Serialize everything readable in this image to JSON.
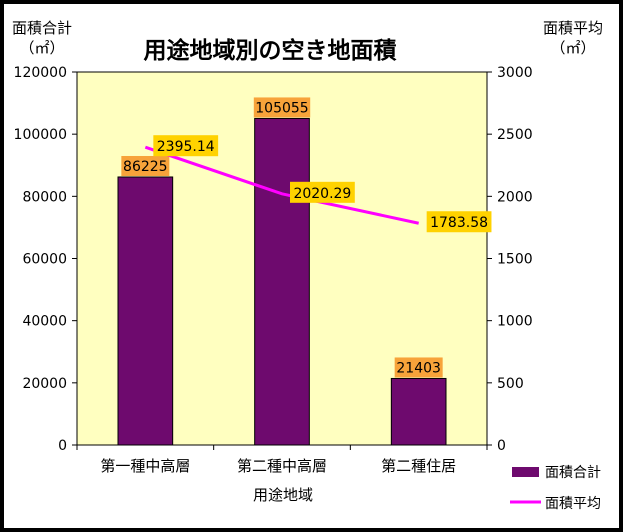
{
  "chart_data": {
    "type": "bar+line",
    "title": "用途地域別の空き地面積",
    "xlabel": "用途地域",
    "ylabel_left": [
      "面積合計",
      "（㎡）"
    ],
    "ylabel_right": [
      "面積平均",
      "（㎡）"
    ],
    "categories": [
      "第一種中高層",
      "第二種中高層",
      "第二種住居"
    ],
    "left_axis": {
      "min": 0,
      "max": 120000,
      "step": 20000,
      "ticks": [
        "0",
        "20000",
        "40000",
        "60000",
        "80000",
        "100000",
        "120000"
      ]
    },
    "right_axis": {
      "min": 0,
      "max": 3000,
      "step": 500,
      "ticks": [
        "0",
        "500",
        "1000",
        "1500",
        "2000",
        "2500",
        "3000"
      ]
    },
    "series": [
      {
        "name": "面積合計",
        "kind": "bar",
        "axis": "left",
        "color": "#6e0a6e",
        "values": [
          86225,
          105055,
          21403
        ],
        "labels": [
          "86225",
          "105055",
          "21403"
        ]
      },
      {
        "name": "面積平均",
        "kind": "line",
        "axis": "right",
        "color": "#ff00ff",
        "values": [
          2395.14,
          2020.29,
          1783.58
        ],
        "labels": [
          "2395.14",
          "2020.29",
          "1783.58"
        ]
      }
    ],
    "plot_background": "#ffffc0",
    "label_background": "#f7a33a",
    "line_label_background": "#ffd200",
    "grid": false,
    "legend_position": "bottom-right"
  }
}
